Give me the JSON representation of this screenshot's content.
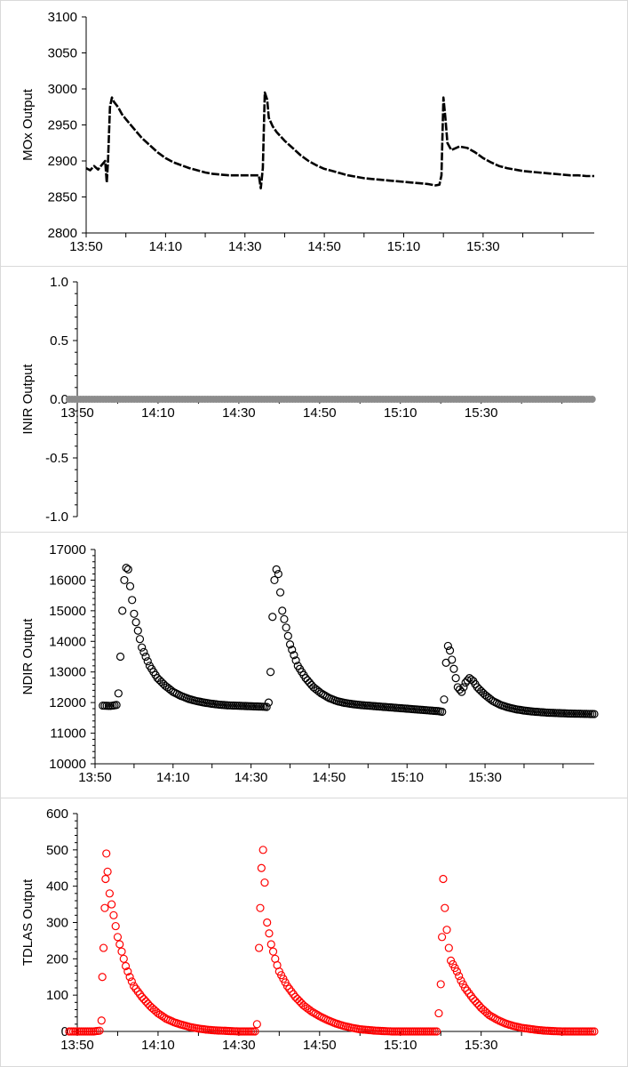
{
  "chart_data": [
    {
      "type": "line",
      "ylabel": "MOx Output",
      "xlabel": "",
      "ylim": [
        2800,
        3100
      ],
      "yticks": [
        2800,
        2850,
        2900,
        2950,
        3000,
        3050,
        3100
      ],
      "xlim_minutes": [
        830,
        958
      ],
      "xticks": [
        "13:50",
        "14:10",
        "14:30",
        "14:50",
        "15:10",
        "15:30"
      ],
      "line_style": "dashed",
      "color": "#000000",
      "series": [
        {
          "points": [
            [
              830,
              2890
            ],
            [
              831,
              2887
            ],
            [
              832,
              2893
            ],
            [
              833,
              2888
            ],
            [
              834,
              2895
            ],
            [
              834.8,
              2900
            ],
            [
              835.2,
              2870
            ],
            [
              835.5,
              2900
            ],
            [
              836,
              2975
            ],
            [
              836.5,
              2988
            ],
            [
              837,
              2982
            ],
            [
              838,
              2975
            ],
            [
              839,
              2965
            ],
            [
              840,
              2958
            ],
            [
              842,
              2945
            ],
            [
              844,
              2932
            ],
            [
              846,
              2922
            ],
            [
              848,
              2912
            ],
            [
              850,
              2904
            ],
            [
              852,
              2898
            ],
            [
              854,
              2894
            ],
            [
              856,
              2890
            ],
            [
              858,
              2887
            ],
            [
              860,
              2884
            ],
            [
              862,
              2882
            ],
            [
              864,
              2881
            ],
            [
              866,
              2880
            ],
            [
              868,
              2880
            ],
            [
              870,
              2880
            ],
            [
              872,
              2880
            ],
            [
              873.5,
              2880
            ],
            [
              874,
              2862
            ],
            [
              874.5,
              2890
            ],
            [
              875,
              2995
            ],
            [
              875.6,
              2985
            ],
            [
              876,
              2960
            ],
            [
              877,
              2948
            ],
            [
              878,
              2940
            ],
            [
              880,
              2928
            ],
            [
              882,
              2918
            ],
            [
              884,
              2908
            ],
            [
              886,
              2900
            ],
            [
              888,
              2894
            ],
            [
              890,
              2889
            ],
            [
              892,
              2886
            ],
            [
              894,
              2883
            ],
            [
              896,
              2880
            ],
            [
              898,
              2878
            ],
            [
              900,
              2876
            ],
            [
              902,
              2875
            ],
            [
              904,
              2874
            ],
            [
              906,
              2873
            ],
            [
              908,
              2872
            ],
            [
              910,
              2871
            ],
            [
              912,
              2870
            ],
            [
              914,
              2869
            ],
            [
              916,
              2868
            ],
            [
              918,
              2866
            ],
            [
              919,
              2867
            ],
            [
              919.5,
              2880
            ],
            [
              920,
              2988
            ],
            [
              920.5,
              2960
            ],
            [
              921,
              2925
            ],
            [
              922,
              2915
            ],
            [
              924,
              2920
            ],
            [
              926,
              2918
            ],
            [
              928,
              2912
            ],
            [
              930,
              2904
            ],
            [
              932,
              2898
            ],
            [
              934,
              2893
            ],
            [
              936,
              2890
            ],
            [
              938,
              2888
            ],
            [
              940,
              2886
            ],
            [
              942,
              2885
            ],
            [
              944,
              2884
            ],
            [
              946,
              2883
            ],
            [
              948,
              2882
            ],
            [
              950,
              2881
            ],
            [
              952,
              2880
            ],
            [
              954,
              2880
            ],
            [
              956,
              2879
            ],
            [
              958,
              2879
            ]
          ]
        }
      ]
    },
    {
      "type": "scatter",
      "ylabel": "INIR Output",
      "xlabel": "",
      "ylim": [
        -1.0,
        1.0
      ],
      "yticks": [
        "-1.0",
        "-0.5",
        "0.0",
        "0.5",
        "1.0"
      ],
      "xlim_minutes": [
        830,
        958
      ],
      "xticks": [
        "13:50",
        "14:10",
        "14:30",
        "14:50",
        "15:10",
        "15:30"
      ],
      "marker": "filled-circle",
      "color": "#8c8c8c",
      "series": [
        {
          "x_range_minutes": [
            828,
            958
          ],
          "constant_value": 0.0
        }
      ]
    },
    {
      "type": "scatter",
      "ylabel": "NDIR Output",
      "xlabel": "",
      "ylim": [
        10000,
        17000
      ],
      "yticks": [
        10000,
        11000,
        12000,
        13000,
        14000,
        15000,
        16000,
        17000
      ],
      "xlim_minutes": [
        830,
        958
      ],
      "xticks": [
        "13:50",
        "14:10",
        "14:30",
        "14:50",
        "15:10",
        "15:30"
      ],
      "marker": "open-circle",
      "color": "#000000",
      "series": [
        {
          "points": [
            [
              832,
              11900
            ],
            [
              834,
              11890
            ],
            [
              835.5,
              11920
            ],
            [
              836,
              12300
            ],
            [
              836.5,
              13500
            ],
            [
              837,
              15000
            ],
            [
              837.5,
              16000
            ],
            [
              838,
              16400
            ],
            [
              838.5,
              16350
            ],
            [
              839,
              15800
            ],
            [
              840,
              14900
            ],
            [
              842,
              13800
            ],
            [
              844,
              13200
            ],
            [
              846,
              12800
            ],
            [
              848,
              12550
            ],
            [
              850,
              12350
            ],
            [
              852,
              12220
            ],
            [
              854,
              12120
            ],
            [
              856,
              12050
            ],
            [
              858,
              12000
            ],
            [
              860,
              11960
            ],
            [
              862,
              11930
            ],
            [
              864,
              11910
            ],
            [
              866,
              11900
            ],
            [
              868,
              11890
            ],
            [
              870,
              11880
            ],
            [
              872,
              11870
            ],
            [
              874,
              11860
            ],
            [
              874.5,
              12000
            ],
            [
              875,
              13000
            ],
            [
              875.5,
              14800
            ],
            [
              876,
              16000
            ],
            [
              876.5,
              16350
            ],
            [
              877,
              16200
            ],
            [
              878,
              15000
            ],
            [
              880,
              13900
            ],
            [
              882,
              13200
            ],
            [
              884,
              12800
            ],
            [
              886,
              12500
            ],
            [
              888,
              12300
            ],
            [
              890,
              12150
            ],
            [
              892,
              12050
            ],
            [
              894,
              11990
            ],
            [
              896,
              11950
            ],
            [
              898,
              11920
            ],
            [
              900,
              11900
            ],
            [
              902,
              11880
            ],
            [
              904,
              11860
            ],
            [
              906,
              11840
            ],
            [
              908,
              11820
            ],
            [
              910,
              11800
            ],
            [
              912,
              11780
            ],
            [
              914,
              11760
            ],
            [
              916,
              11740
            ],
            [
              918,
              11720
            ],
            [
              919,
              11700
            ],
            [
              919.5,
              12100
            ],
            [
              920,
              13300
            ],
            [
              920.5,
              13850
            ],
            [
              921,
              13700
            ],
            [
              922,
              13100
            ],
            [
              923,
              12500
            ],
            [
              924,
              12350
            ],
            [
              925,
              12650
            ],
            [
              926,
              12800
            ],
            [
              927,
              12700
            ],
            [
              928,
              12500
            ],
            [
              930,
              12250
            ],
            [
              932,
              12050
            ],
            [
              934,
              11920
            ],
            [
              936,
              11840
            ],
            [
              938,
              11780
            ],
            [
              940,
              11740
            ],
            [
              942,
              11710
            ],
            [
              944,
              11690
            ],
            [
              946,
              11670
            ],
            [
              948,
              11660
            ],
            [
              950,
              11650
            ],
            [
              952,
              11640
            ],
            [
              954,
              11635
            ],
            [
              956,
              11630
            ],
            [
              958,
              11625
            ]
          ]
        }
      ]
    },
    {
      "type": "scatter",
      "ylabel": "TDLAS Output",
      "xlabel": "",
      "ylim": [
        0,
        600
      ],
      "yticks": [
        0,
        100,
        200,
        300,
        400,
        500,
        600
      ],
      "xlim_minutes": [
        830,
        958
      ],
      "xticks": [
        "13:50",
        "14:10",
        "14:30",
        "14:50",
        "15:10",
        "15:30"
      ],
      "marker": "open-circle",
      "color": "#ff0000",
      "series": [
        {
          "points": [
            [
              828,
              0
            ],
            [
              830,
              0
            ],
            [
              832,
              0
            ],
            [
              834,
              0
            ],
            [
              835.5,
              2
            ],
            [
              836,
              30
            ],
            [
              836.2,
              150
            ],
            [
              836.5,
              230
            ],
            [
              836.8,
              340
            ],
            [
              837,
              420
            ],
            [
              837.2,
              490
            ],
            [
              837.5,
              440
            ],
            [
              838,
              380
            ],
            [
              838.5,
              350
            ],
            [
              839,
              320
            ],
            [
              839.5,
              290
            ],
            [
              840,
              260
            ],
            [
              841,
              220
            ],
            [
              842,
              180
            ],
            [
              843,
              150
            ],
            [
              844,
              125
            ],
            [
              846,
              95
            ],
            [
              848,
              70
            ],
            [
              850,
              50
            ],
            [
              852,
              35
            ],
            [
              854,
              25
            ],
            [
              856,
              18
            ],
            [
              858,
              12
            ],
            [
              860,
              8
            ],
            [
              862,
              5
            ],
            [
              864,
              3
            ],
            [
              866,
              2
            ],
            [
              868,
              1
            ],
            [
              870,
              0
            ],
            [
              872,
              0
            ],
            [
              874,
              0
            ],
            [
              874.5,
              20
            ],
            [
              875,
              230
            ],
            [
              875.3,
              340
            ],
            [
              875.6,
              450
            ],
            [
              876,
              500
            ],
            [
              876.4,
              410
            ],
            [
              877,
              300
            ],
            [
              878,
              240
            ],
            [
              879,
              200
            ],
            [
              880,
              165
            ],
            [
              882,
              125
            ],
            [
              884,
              95
            ],
            [
              886,
              72
            ],
            [
              888,
              55
            ],
            [
              890,
              42
            ],
            [
              892,
              31
            ],
            [
              894,
              22
            ],
            [
              896,
              15
            ],
            [
              898,
              10
            ],
            [
              900,
              6
            ],
            [
              902,
              4
            ],
            [
              904,
              2
            ],
            [
              906,
              1
            ],
            [
              908,
              0
            ],
            [
              910,
              0
            ],
            [
              912,
              0
            ],
            [
              914,
              0
            ],
            [
              916,
              0
            ],
            [
              918,
              0
            ],
            [
              919,
              0
            ],
            [
              919.5,
              50
            ],
            [
              920,
              130
            ],
            [
              920.3,
              260
            ],
            [
              920.6,
              420
            ],
            [
              921,
              340
            ],
            [
              921.5,
              280
            ],
            [
              922,
              230
            ],
            [
              922.5,
              195
            ],
            [
              923,
              185
            ],
            [
              924,
              165
            ],
            [
              925,
              140
            ],
            [
              926,
              120
            ],
            [
              928,
              90
            ],
            [
              930,
              65
            ],
            [
              932,
              45
            ],
            [
              934,
              32
            ],
            [
              936,
              22
            ],
            [
              938,
              15
            ],
            [
              940,
              10
            ],
            [
              942,
              7
            ],
            [
              944,
              4
            ],
            [
              946,
              2
            ],
            [
              948,
              1
            ],
            [
              950,
              0
            ],
            [
              952,
              0
            ],
            [
              954,
              0
            ],
            [
              956,
              0
            ],
            [
              958,
              0
            ]
          ]
        }
      ]
    }
  ]
}
